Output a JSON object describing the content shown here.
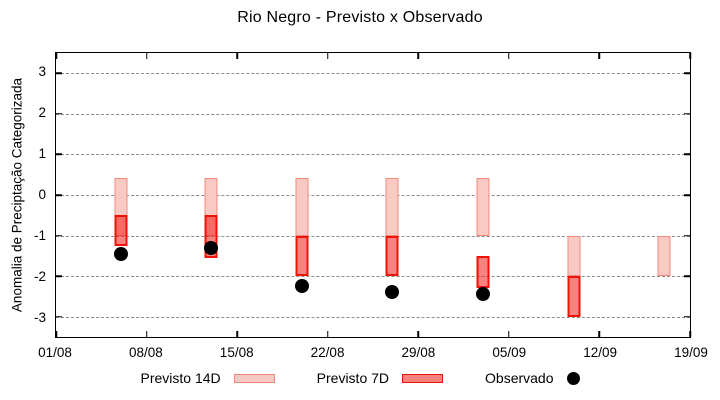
{
  "title": "Rio Negro - Previsto x Observado",
  "y_axis_label": "Anomalia de Preciptação Categorizada",
  "colors": {
    "axis": "#000000",
    "gridline": "#8c8c8c",
    "previsto14_fill": "#f8cac3",
    "previsto14_border": "#f0897b",
    "previsto7_fill": "rgba(240,30,25,0.55)",
    "previsto7_border": "#ee1405",
    "observado": "#000000"
  },
  "legend": {
    "items": [
      {
        "label": "Previsto 14D",
        "swatch": "box",
        "fill": "#f8cac3",
        "border": "#f0897b"
      },
      {
        "label": "Previsto 7D",
        "swatch": "box",
        "fill": "#f4827d",
        "border": "#ee1405"
      },
      {
        "label": "Observado",
        "swatch": "dot",
        "color": "#000000"
      }
    ]
  },
  "chart_data": {
    "type": "bar",
    "title": "Rio Negro - Previsto x Observado",
    "ylabel": "Anomalia de Preciptação Categorizada",
    "ylim": [
      -3.5,
      3.5
    ],
    "yticks": [
      3,
      2,
      1,
      0,
      -1,
      -2,
      -3
    ],
    "grid": true,
    "legend_position": "bottom",
    "x_days_total": 49,
    "xticks": [
      {
        "day": 0,
        "label": "01/08"
      },
      {
        "day": 7,
        "label": "08/08"
      },
      {
        "day": 14,
        "label": "15/08"
      },
      {
        "day": 21,
        "label": "22/08"
      },
      {
        "day": 28,
        "label": "29/08"
      },
      {
        "day": 35,
        "label": "05/09"
      },
      {
        "day": 42,
        "label": "12/09"
      },
      {
        "day": 49,
        "label": "19/09"
      }
    ],
    "series": [
      {
        "name": "Previsto 14D",
        "type": "range_bar",
        "fill": "#f8cac3",
        "stroke": "#f0897b",
        "stroke_width": 1.5,
        "points": [
          {
            "date": "06/08",
            "day": 5,
            "from": 0.43,
            "to": -1.0
          },
          {
            "date": "13/08",
            "day": 12,
            "from": 0.43,
            "to": -1.0
          },
          {
            "date": "20/08",
            "day": 19,
            "from": 0.43,
            "to": -1.0
          },
          {
            "date": "27/08",
            "day": 26,
            "from": 0.43,
            "to": -1.0
          },
          {
            "date": "03/09",
            "day": 33,
            "from": 0.43,
            "to": -1.0
          },
          {
            "date": "10/09",
            "day": 40,
            "from": -1.0,
            "to": -2.0
          },
          {
            "date": "17/09",
            "day": 47,
            "from": -1.0,
            "to": -2.0
          }
        ]
      },
      {
        "name": "Previsto 7D",
        "type": "range_bar",
        "fill": "rgba(240,30,25,0.55)",
        "stroke": "#ee1405",
        "stroke_width": 2,
        "points": [
          {
            "date": "06/08",
            "day": 5,
            "from": -0.5,
            "to": -1.25
          },
          {
            "date": "13/08",
            "day": 12,
            "from": -0.5,
            "to": -1.55
          },
          {
            "date": "20/08",
            "day": 19,
            "from": -1.0,
            "to": -2.0
          },
          {
            "date": "27/08",
            "day": 26,
            "from": -1.0,
            "to": -2.0
          },
          {
            "date": "03/09",
            "day": 33,
            "from": -1.5,
            "to": -2.3
          },
          {
            "date": "10/09",
            "day": 40,
            "from": -2.0,
            "to": -3.0
          }
        ]
      },
      {
        "name": "Observado",
        "type": "scatter",
        "color": "#000000",
        "marker_size": 14,
        "points": [
          {
            "date": "06/08",
            "day": 5,
            "value": -1.45
          },
          {
            "date": "13/08",
            "day": 12,
            "value": -1.3
          },
          {
            "date": "20/08",
            "day": 19,
            "value": -2.25
          },
          {
            "date": "27/08",
            "day": 26,
            "value": -2.4
          },
          {
            "date": "03/09",
            "day": 33,
            "value": -2.45
          }
        ]
      }
    ]
  }
}
